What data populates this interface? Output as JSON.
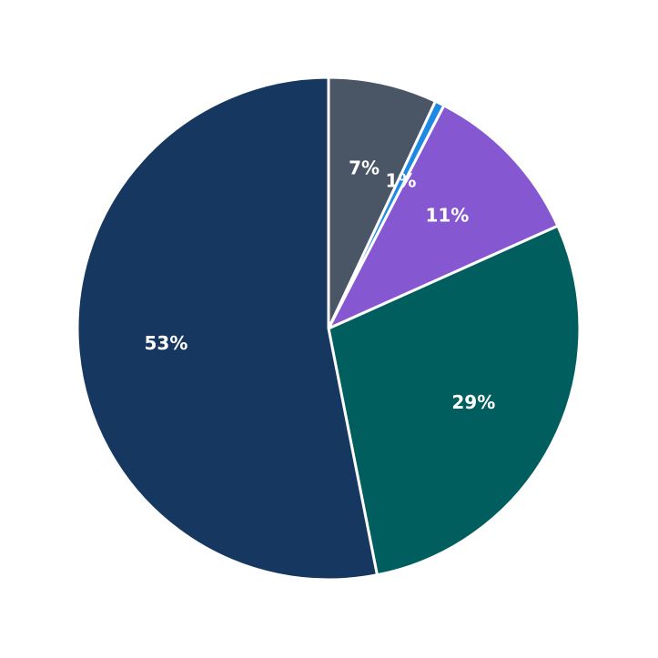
{
  "chart_data": {
    "type": "pie",
    "series": [
      {
        "values": [
          7,
          0.6,
          10.7,
          28.6,
          53.1
        ],
        "value_labels": [
          "7%",
          "1%",
          "11%",
          "29%",
          "53%"
        ],
        "colors": [
          "#4a5566",
          "#1e88e5",
          "#8557d0",
          "#005e5e",
          "#163860"
        ]
      }
    ],
    "start_angle": 90,
    "direction": "clockwise"
  }
}
